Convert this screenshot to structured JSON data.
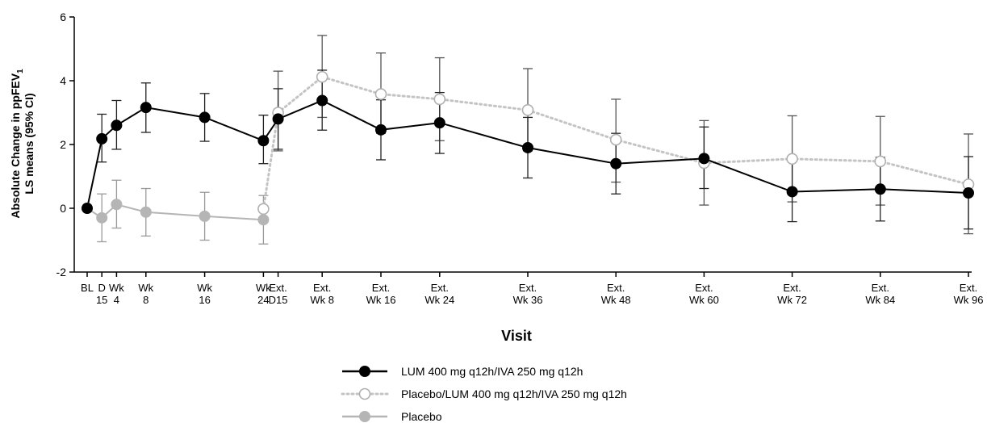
{
  "chart_data": {
    "type": "line",
    "xlabel": "Visit",
    "ylabel_line1": "Absolute Change in ppFEV",
    "ylabel_sub": "1",
    "ylabel_line2": "LS means (95% CI)",
    "ylim": [
      -2,
      6
    ],
    "yticks": [
      -2,
      0,
      2,
      4,
      6
    ],
    "grid": false,
    "legend_position": "bottom-center",
    "categories": [
      {
        "id": "BL",
        "lines": [
          "BL"
        ],
        "week": 0
      },
      {
        "id": "D15",
        "lines": [
          "D",
          "15"
        ],
        "week": 2
      },
      {
        "id": "Wk4",
        "lines": [
          "Wk",
          "4"
        ],
        "week": 4
      },
      {
        "id": "Wk8",
        "lines": [
          "Wk",
          "8"
        ],
        "week": 8
      },
      {
        "id": "Wk16",
        "lines": [
          "Wk",
          "16"
        ],
        "week": 16
      },
      {
        "id": "Wk24",
        "lines": [
          "Wk",
          "24"
        ],
        "week": 24
      },
      {
        "id": "ExtD15",
        "lines": [
          "Ext.",
          "D15"
        ],
        "week": 26
      },
      {
        "id": "ExtWk8",
        "lines": [
          "Ext.",
          "Wk 8"
        ],
        "week": 32
      },
      {
        "id": "ExtWk16",
        "lines": [
          "Ext.",
          "Wk 16"
        ],
        "week": 40
      },
      {
        "id": "ExtWk24",
        "lines": [
          "Ext.",
          "Wk 24"
        ],
        "week": 48
      },
      {
        "id": "ExtWk36",
        "lines": [
          "Ext.",
          "Wk 36"
        ],
        "week": 60
      },
      {
        "id": "ExtWk48",
        "lines": [
          "Ext.",
          "Wk 48"
        ],
        "week": 72
      },
      {
        "id": "ExtWk60",
        "lines": [
          "Ext.",
          "Wk 60"
        ],
        "week": 84
      },
      {
        "id": "ExtWk72",
        "lines": [
          "Ext.",
          "Wk 72"
        ],
        "week": 96
      },
      {
        "id": "ExtWk84",
        "lines": [
          "Ext.",
          "Wk 84"
        ],
        "week": 108
      },
      {
        "id": "ExtWk96",
        "lines": [
          "Ext.",
          "Wk 96"
        ],
        "week": 120
      }
    ],
    "series": [
      {
        "name": "LUM 400 mg q12h/IVA 250 mg q12h",
        "style": "solid",
        "marker": "filled",
        "color": "#000000",
        "points": [
          {
            "x": "BL",
            "y": 0.0
          },
          {
            "x": "D15",
            "y": 2.18,
            "lo": 1.45,
            "hi": 2.95
          },
          {
            "x": "Wk4",
            "y": 2.6,
            "lo": 1.85,
            "hi": 3.38
          },
          {
            "x": "Wk8",
            "y": 3.16,
            "lo": 2.38,
            "hi": 3.93
          },
          {
            "x": "Wk16",
            "y": 2.85,
            "lo": 2.1,
            "hi": 3.6
          },
          {
            "x": "Wk24",
            "y": 2.12,
            "lo": 1.4,
            "hi": 2.92
          },
          {
            "x": "ExtD15",
            "y": 2.8,
            "lo": 1.85,
            "hi": 3.75
          },
          {
            "x": "ExtWk8",
            "y": 3.38,
            "lo": 2.45,
            "hi": 4.33
          },
          {
            "x": "ExtWk16",
            "y": 2.46,
            "lo": 1.52,
            "hi": 3.4
          },
          {
            "x": "ExtWk24",
            "y": 2.68,
            "lo": 1.72,
            "hi": 3.63
          },
          {
            "x": "ExtWk36",
            "y": 1.9,
            "lo": 0.95,
            "hi": 2.85
          },
          {
            "x": "ExtWk48",
            "y": 1.4,
            "lo": 0.45,
            "hi": 2.35
          },
          {
            "x": "ExtWk60",
            "y": 1.56,
            "lo": 0.62,
            "hi": 2.55
          },
          {
            "x": "ExtWk72",
            "y": 0.52,
            "lo": -0.42,
            "hi": 1.48
          },
          {
            "x": "ExtWk84",
            "y": 0.6,
            "lo": -0.4,
            "hi": 1.6
          },
          {
            "x": "ExtWk96",
            "y": 0.48,
            "lo": -0.65,
            "hi": 1.62
          }
        ]
      },
      {
        "name": "Placebo/LUM 400 mg q12h/IVA 250 mg q12h",
        "style": "dotted",
        "marker": "open",
        "color": "#bbbbbb",
        "points": [
          {
            "x": "Wk24",
            "y": -0.02
          },
          {
            "x": "ExtD15",
            "y": 3.0,
            "lo": 1.8,
            "hi": 4.3
          },
          {
            "x": "ExtWk8",
            "y": 4.12,
            "lo": 2.85,
            "hi": 5.42
          },
          {
            "x": "ExtWk16",
            "y": 3.58,
            "lo": 2.35,
            "hi": 4.87
          },
          {
            "x": "ExtWk24",
            "y": 3.42,
            "lo": 2.12,
            "hi": 4.72
          },
          {
            "x": "ExtWk36",
            "y": 3.08,
            "lo": 1.8,
            "hi": 4.38
          },
          {
            "x": "ExtWk48",
            "y": 2.15,
            "lo": 0.82,
            "hi": 3.42
          },
          {
            "x": "ExtWk60",
            "y": 1.42,
            "lo": 0.1,
            "hi": 2.75
          },
          {
            "x": "ExtWk72",
            "y": 1.55,
            "lo": 0.2,
            "hi": 2.9
          },
          {
            "x": "ExtWk84",
            "y": 1.47,
            "lo": 0.1,
            "hi": 2.88
          },
          {
            "x": "ExtWk96",
            "y": 0.75,
            "lo": -0.8,
            "hi": 2.33
          }
        ]
      },
      {
        "name": "Placebo",
        "style": "solid",
        "marker": "filled",
        "color": "#b5b5b5",
        "points": [
          {
            "x": "BL",
            "y": 0.0
          },
          {
            "x": "D15",
            "y": -0.3,
            "lo": -1.05,
            "hi": 0.45
          },
          {
            "x": "Wk4",
            "y": 0.12,
            "lo": -0.62,
            "hi": 0.88
          },
          {
            "x": "Wk8",
            "y": -0.12,
            "lo": -0.87,
            "hi": 0.62
          },
          {
            "x": "Wk16",
            "y": -0.25,
            "lo": -1.0,
            "hi": 0.5
          },
          {
            "x": "Wk24",
            "y": -0.36,
            "lo": -1.12,
            "hi": 0.4
          }
        ]
      }
    ]
  }
}
